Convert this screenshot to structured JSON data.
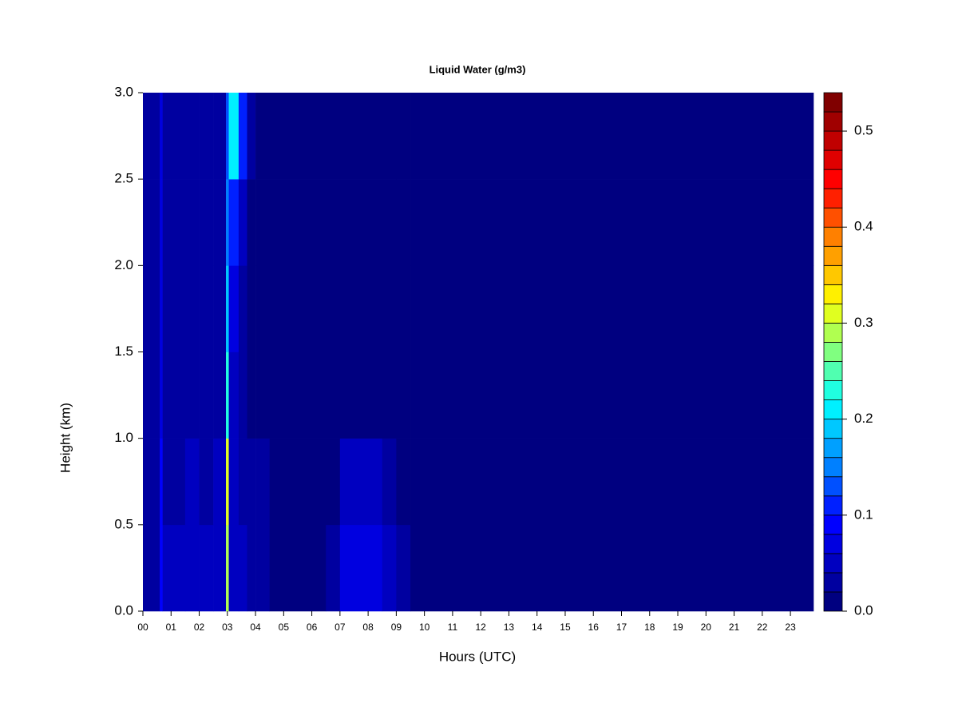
{
  "chart_data": {
    "type": "heatmap",
    "title": "Liquid Water (g/m3)",
    "x_label": "Hours (UTC)",
    "y_label": "Height (km)",
    "xlim": [
      0,
      23.82
    ],
    "ylim": [
      0,
      3.0
    ],
    "xticks": [
      {
        "value": 0,
        "label": "00"
      },
      {
        "value": 1,
        "label": "01"
      },
      {
        "value": 2,
        "label": "02"
      },
      {
        "value": 3,
        "label": "03"
      },
      {
        "value": 4,
        "label": "04"
      },
      {
        "value": 5,
        "label": "05"
      },
      {
        "value": 6,
        "label": "06"
      },
      {
        "value": 7,
        "label": "07"
      },
      {
        "value": 8,
        "label": "08"
      },
      {
        "value": 9,
        "label": "09"
      },
      10,
      11,
      12,
      13,
      14,
      15,
      16,
      17,
      18,
      19,
      20,
      21,
      22,
      23
    ],
    "yticks": [
      {
        "value": 0,
        "label": "0.0"
      },
      0.5,
      {
        "value": 1,
        "label": "1.0"
      },
      1.5,
      {
        "value": 2,
        "label": "2.0"
      },
      2.5,
      {
        "value": 3,
        "label": "3.0"
      }
    ],
    "xbins": [
      0,
      0.6,
      0.7,
      1.0,
      1.5,
      2.0,
      2.5,
      2.95,
      3.05,
      3.4,
      3.7,
      4.0,
      4.5,
      6.5,
      7.0,
      8.5,
      9.0,
      9.5,
      23.82
    ],
    "ybins": [
      0,
      0.5,
      1.0,
      1.5,
      2.0,
      2.5,
      3.0
    ],
    "z": [
      [
        0.03,
        0.08,
        0.04,
        0.04,
        0.05,
        0.04,
        0.05,
        0.28,
        0.05,
        0.04,
        0.03,
        0.03,
        0.01,
        0.03,
        0.06,
        0.04,
        0.03,
        0.01
      ],
      [
        0.03,
        0.08,
        0.03,
        0.03,
        0.04,
        0.03,
        0.04,
        0.3,
        0.04,
        0.03,
        0.02,
        0.02,
        0.01,
        0.01,
        0.04,
        0.02,
        0.01,
        0.01
      ],
      [
        0.02,
        0.07,
        0.03,
        0.02,
        0.03,
        0.03,
        0.03,
        0.22,
        0.05,
        0.02,
        0.01,
        0.01,
        0.01,
        0.01,
        0.01,
        0.01,
        0.01,
        0.01
      ],
      [
        0.02,
        0.07,
        0.02,
        0.02,
        0.03,
        0.02,
        0.03,
        0.18,
        0.07,
        0.02,
        0.01,
        0.01,
        0.01,
        0.01,
        0.01,
        0.01,
        0.01,
        0.01
      ],
      [
        0.02,
        0.06,
        0.02,
        0.02,
        0.03,
        0.02,
        0.03,
        0.14,
        0.11,
        0.04,
        0.01,
        0.01,
        0.01,
        0.01,
        0.01,
        0.01,
        0.01,
        0.01
      ],
      [
        0.02,
        0.06,
        0.02,
        0.02,
        0.02,
        0.02,
        0.02,
        0.12,
        0.2,
        0.1,
        0.02,
        0.01,
        0.01,
        0.01,
        0.01,
        0.01,
        0.01,
        0.01
      ]
    ],
    "colorbar": {
      "levels": [
        0,
        0.02,
        0.04,
        0.06,
        0.08,
        0.1,
        0.12,
        0.14,
        0.16,
        0.18,
        0.2,
        0.22,
        0.24,
        0.26,
        0.28,
        0.3,
        0.32,
        0.34,
        0.36,
        0.38,
        0.4,
        0.42,
        0.44,
        0.46,
        0.48,
        0.5,
        0.52,
        0.54
      ],
      "colors": [
        "#000080",
        "#0000A0",
        "#0000C0",
        "#0000E0",
        "#0000FF",
        "#0020FF",
        "#0050FF",
        "#0080FF",
        "#00A0FF",
        "#00C8FF",
        "#00F0FF",
        "#20FFE0",
        "#50FFB0",
        "#80FF80",
        "#B0FF50",
        "#E0FF20",
        "#FFF000",
        "#FFC800",
        "#FFA000",
        "#FF8000",
        "#FF5000",
        "#FF2000",
        "#FF0000",
        "#E00000",
        "#C00000",
        "#A00000",
        "#800000"
      ],
      "ticks": [
        {
          "value": 0,
          "label": "0.0"
        },
        0.1,
        0.2,
        0.3,
        0.4,
        0.5
      ]
    }
  }
}
